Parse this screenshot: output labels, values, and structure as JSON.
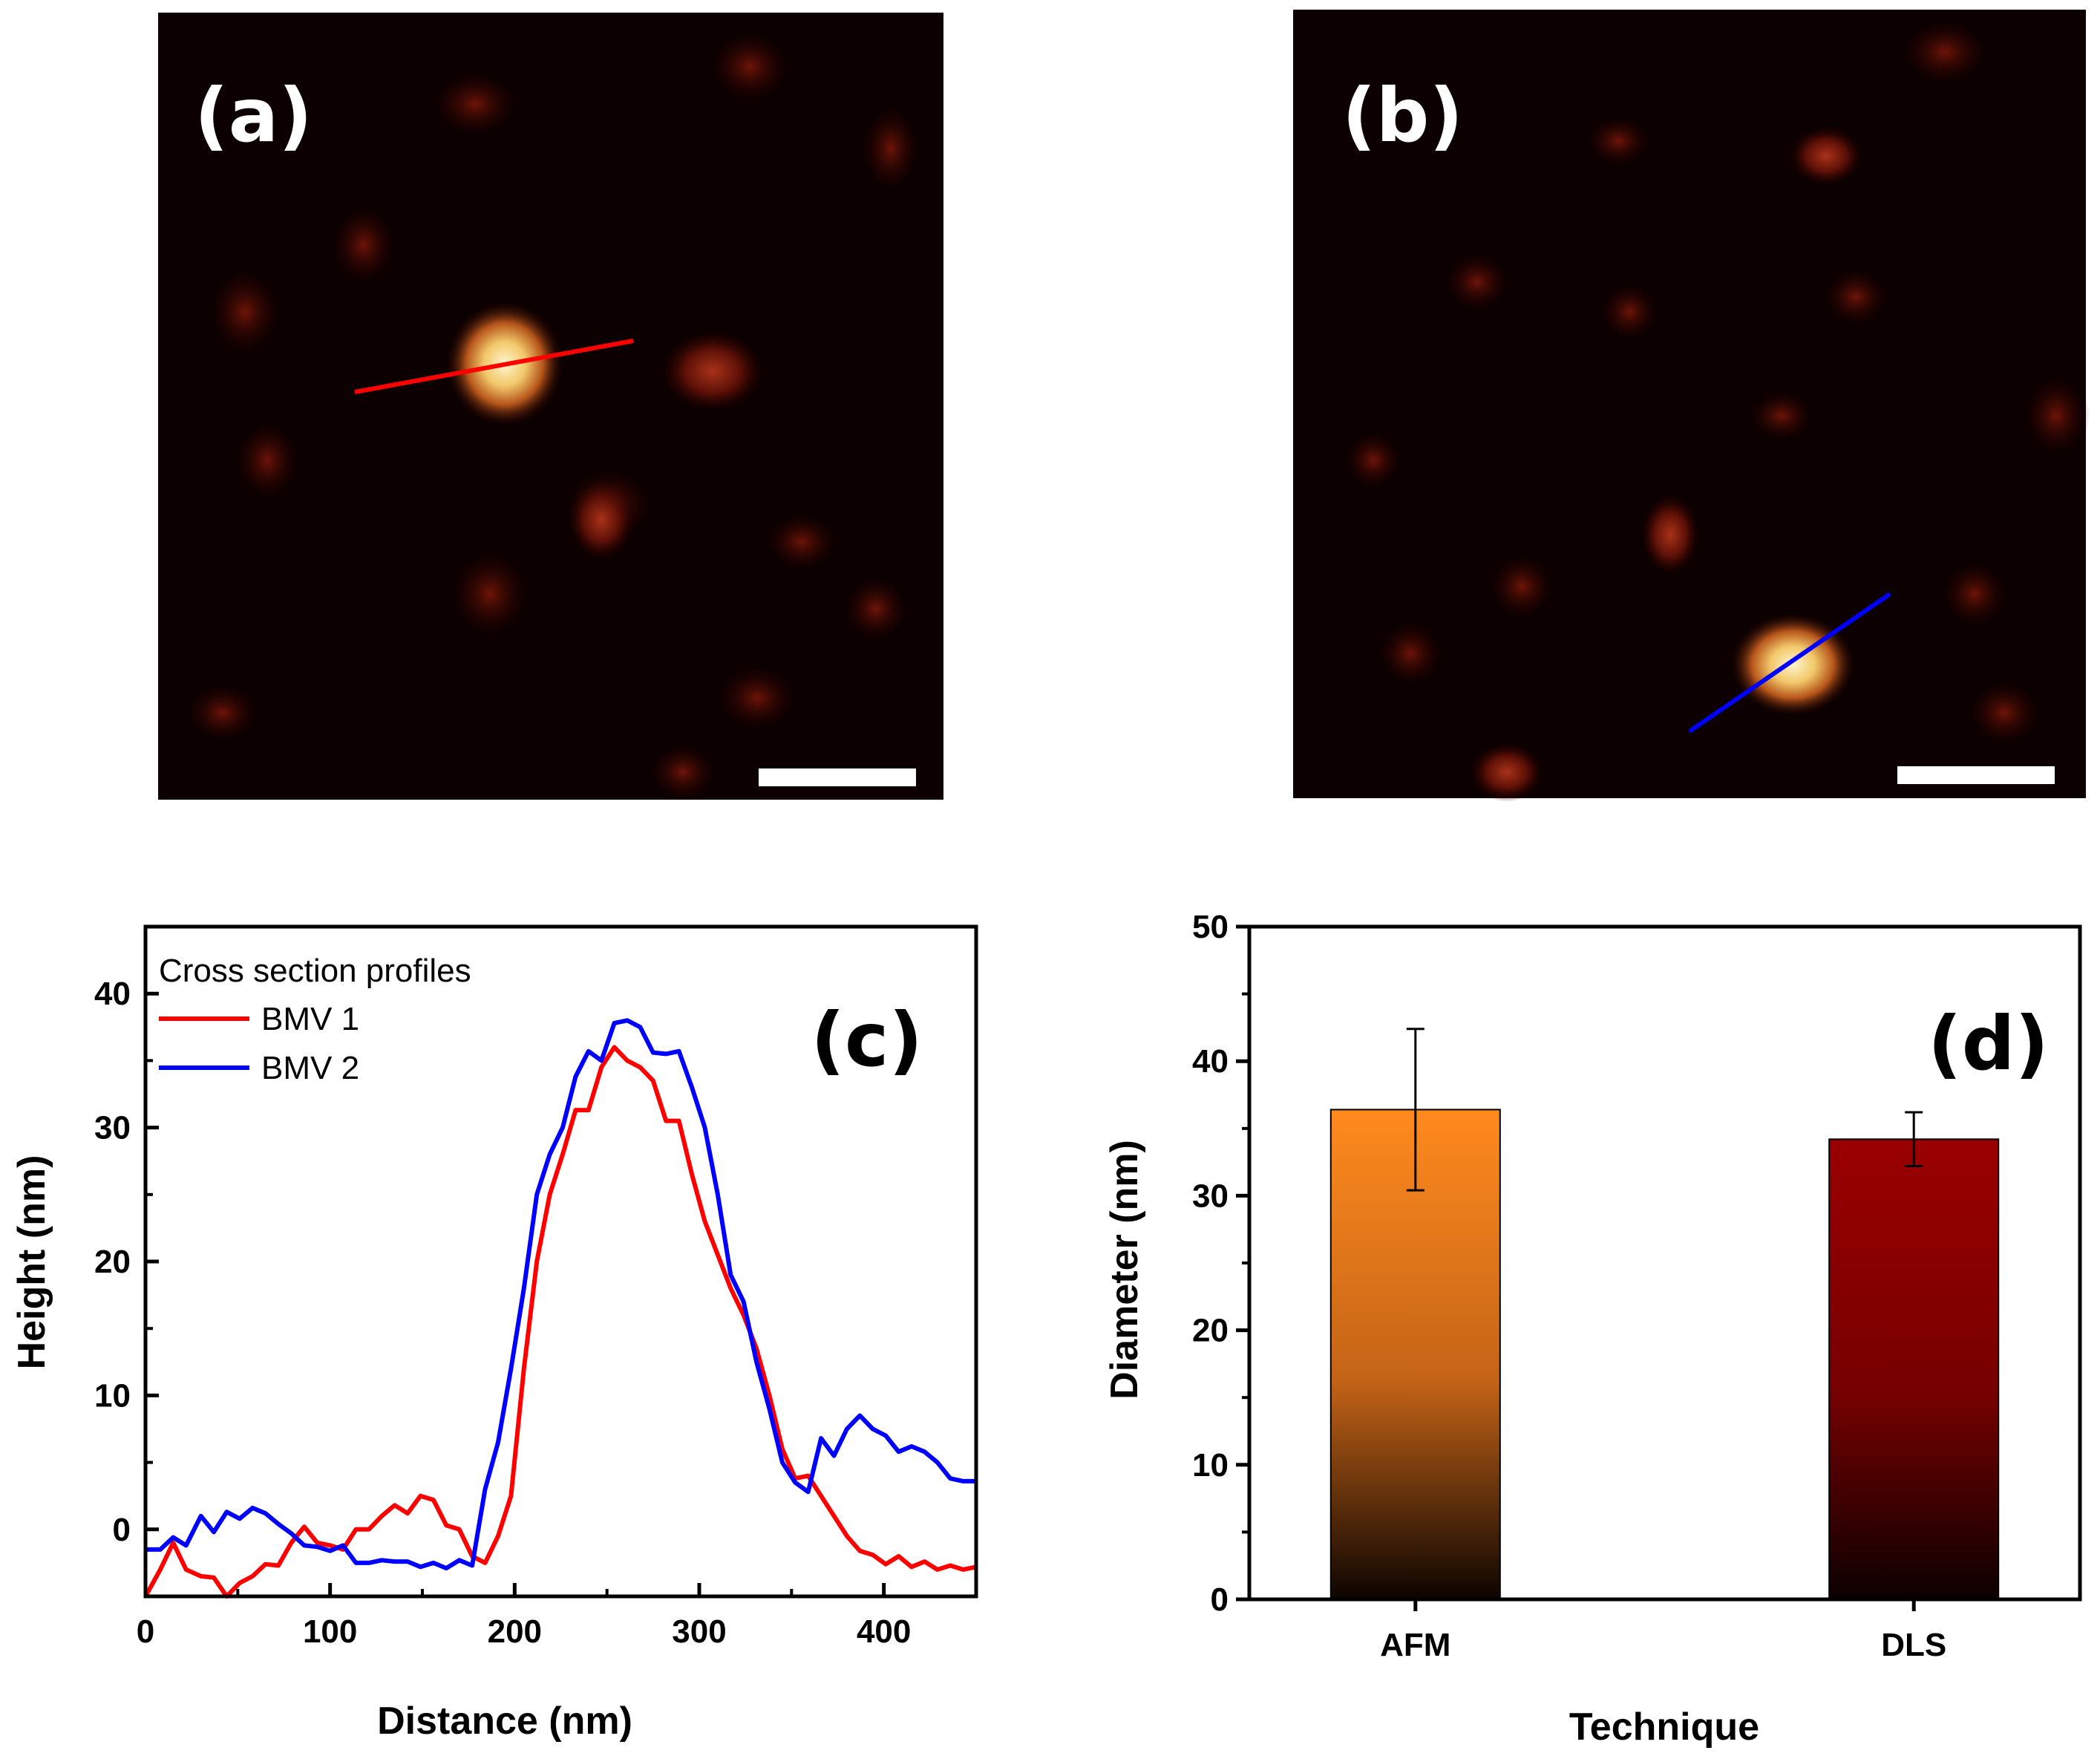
{
  "panels": {
    "a": {
      "label": "(a)",
      "profile_line_color": "#ff0000"
    },
    "b": {
      "label": "(b)",
      "profile_line_color": "#0000ff"
    }
  },
  "chart_data": [
    {
      "id": "c",
      "panel_label": "(c)",
      "type": "line",
      "xlabel": "Distance (nm)",
      "ylabel": "Height (nm)",
      "xlim": [
        0,
        450
      ],
      "ylim": [
        -5,
        45
      ],
      "xticks": [
        0,
        100,
        200,
        300,
        400
      ],
      "yticks": [
        0,
        10,
        20,
        30,
        40
      ],
      "legend_title": "Cross section profiles",
      "legend_position": "top-left",
      "series": [
        {
          "name": "BMV 1",
          "color": "#ff0000",
          "x": [
            0,
            8,
            15,
            22,
            30,
            37,
            44,
            51,
            58,
            65,
            72,
            79,
            86,
            93,
            100,
            107,
            114,
            121,
            128,
            135,
            142,
            149,
            156,
            163,
            170,
            177,
            184,
            191,
            198,
            205,
            212,
            219,
            226,
            233,
            240,
            247,
            254,
            261,
            268,
            275,
            282,
            289,
            296,
            303,
            310,
            317,
            324,
            331,
            338,
            345,
            352,
            359,
            366,
            373,
            380,
            387,
            394,
            401,
            408,
            415,
            422,
            429,
            436,
            443,
            450
          ],
          "y": [
            -5,
            -3,
            -1,
            -3,
            -3.5,
            -3.6,
            -5,
            -4,
            -3.5,
            -2.6,
            -2.7,
            -1,
            0.2,
            -1,
            -1.2,
            -1.5,
            0,
            0,
            1,
            1.8,
            1.2,
            2.5,
            2.2,
            0.3,
            0,
            -2,
            -2.5,
            -0.5,
            2.5,
            12,
            20,
            25,
            28,
            31.3,
            31.3,
            34.5,
            36,
            35,
            34.5,
            33.5,
            30.5,
            30.5,
            26.5,
            23,
            20.5,
            18,
            16,
            13.5,
            10,
            6,
            3.8,
            4,
            2.5,
            1,
            -0.5,
            -1.6,
            -1.9,
            -2.6,
            -2,
            -2.8,
            -2.4,
            -3,
            -2.7,
            -3,
            -2.8
          ]
        },
        {
          "name": "BMV 2",
          "color": "#0000ff",
          "x": [
            0,
            8,
            15,
            22,
            30,
            37,
            44,
            51,
            58,
            65,
            72,
            79,
            86,
            93,
            100,
            107,
            114,
            121,
            128,
            135,
            142,
            149,
            156,
            163,
            170,
            177,
            184,
            191,
            198,
            205,
            212,
            219,
            226,
            233,
            240,
            247,
            254,
            261,
            268,
            275,
            282,
            289,
            296,
            303,
            310,
            317,
            324,
            331,
            338,
            345,
            352,
            359,
            366,
            373,
            380,
            387,
            394,
            401,
            408,
            415,
            422,
            429,
            436,
            443,
            450
          ],
          "y": [
            -1.5,
            -1.5,
            -0.6,
            -1.2,
            1,
            -0.2,
            1.3,
            0.8,
            1.6,
            1.2,
            0.4,
            -0.3,
            -1.2,
            -1.3,
            -1.6,
            -1.2,
            -2.5,
            -2.5,
            -2.3,
            -2.4,
            -2.4,
            -2.8,
            -2.5,
            -2.9,
            -2.3,
            -2.7,
            3,
            6.5,
            12,
            18,
            25,
            28,
            30,
            33.8,
            35.7,
            35,
            37.8,
            38,
            37.5,
            35.6,
            35.5,
            35.7,
            33,
            30,
            25,
            19,
            17,
            12.5,
            9,
            5,
            3.5,
            2.8,
            6.8,
            5.5,
            7.5,
            8.5,
            7.5,
            7,
            5.8,
            6.2,
            5.8,
            5,
            3.8,
            3.6,
            3.6
          ]
        }
      ]
    },
    {
      "id": "d",
      "panel_label": "(d)",
      "type": "bar",
      "xlabel": "Technique",
      "ylabel": "Diameter (nm)",
      "ylim": [
        0,
        50
      ],
      "yticks": [
        0,
        10,
        20,
        30,
        40,
        50
      ],
      "categories": [
        "AFM",
        "DLS"
      ],
      "values": [
        36.4,
        34.2
      ],
      "errors": [
        6.0,
        2.0
      ],
      "colors": [
        "#ff8a1e",
        "#9a0000"
      ]
    }
  ]
}
